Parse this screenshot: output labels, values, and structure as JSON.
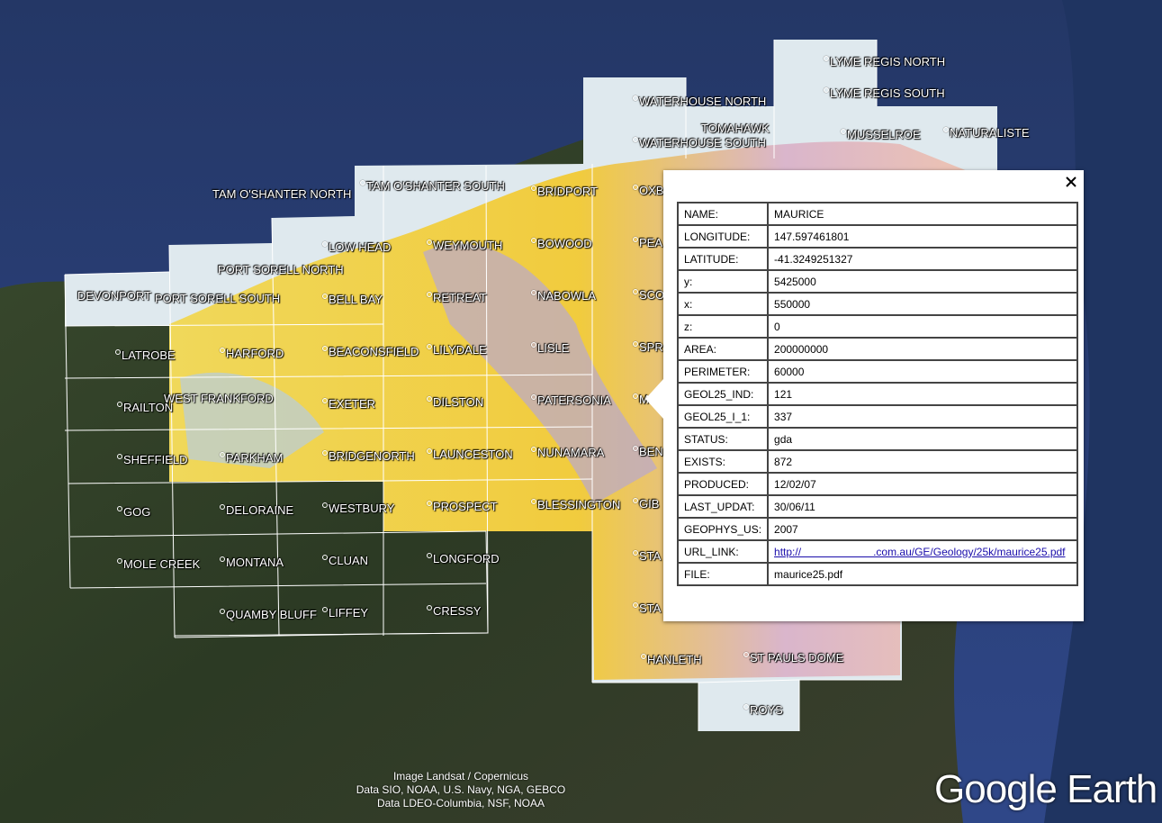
{
  "map": {
    "labels": [
      "LYME REGIS NORTH",
      "LYME REGIS SOUTH",
      "WATERHOUSE NORTH",
      "TOMAHAWK",
      "WATERHOUSE  SOUTH",
      "MUSSELROE",
      "NATURALISTE",
      "TAM O'SHANTER NORTH",
      "TAM O'SHANTER SOUTH",
      "BRIDPORT",
      "OXB",
      "LOW HEAD",
      "WEYMOUTH",
      "BOWOOD",
      "PEA",
      "PORT SORELL NORTH",
      "DEVONPORT",
      "PORT SORELL SOUTH",
      "BELL BAY",
      "RETREAT",
      "NABOWLA",
      "SCO",
      "LATROBE",
      "HARFORD",
      "BEACONSFIELD",
      "LILYDALE",
      "LISLE",
      "SPR",
      "RAILTON",
      "WEST FRANKFORD",
      "EXETER",
      "DILSTON",
      "PATERSONIA",
      "M",
      "SHEFFIELD",
      "PARKHAM",
      "BRIDGENORTH",
      "LAUNCESTON",
      "NUNAMARA",
      "BEN",
      "GOG",
      "DELORAINE",
      "WESTBURY",
      "PROSPECT",
      "BLESSINGTON",
      "GIB",
      "MOLE CREEK",
      "MONTANA",
      "CLUAN",
      "LONGFORD",
      "STA",
      "QUAMBY BLUFF",
      "LIFFEY",
      "CRESSY",
      "STA",
      "HANLETH",
      "ST PAULS DOME",
      "ROYS"
    ]
  },
  "popup": {
    "rows": [
      [
        "NAME:",
        "MAURICE"
      ],
      [
        "LONGITUDE:",
        "147.597461801"
      ],
      [
        "LATITUDE:",
        "-41.3249251327"
      ],
      [
        "y:",
        "5425000"
      ],
      [
        "x:",
        "550000"
      ],
      [
        "z:",
        "0"
      ],
      [
        "AREA:",
        "200000000"
      ],
      [
        "PERIMETER:",
        "60000"
      ],
      [
        "GEOL25_IND:",
        "121"
      ],
      [
        "GEOL25_I_1:",
        "337"
      ],
      [
        "STATUS:",
        "gda"
      ],
      [
        "EXISTS:",
        "872"
      ],
      [
        "PRODUCED:",
        "12/02/07"
      ],
      [
        "LAST_UPDAT:",
        "30/06/11"
      ],
      [
        "GEOPHYS_US:",
        "2007"
      ],
      [
        "URL_LINK:",
        "http://                        .com.au/GE/Geology/25k/maurice25.pdf"
      ],
      [
        "FILE:",
        "maurice25.pdf"
      ]
    ]
  },
  "attribution": [
    "Image Landsat / Copernicus",
    "Data SIO, NOAA, U.S. Navy, NGA, GEBCO",
    "Data LDEO-Columbia, NSF, NOAA"
  ],
  "logo": "Google Earth"
}
